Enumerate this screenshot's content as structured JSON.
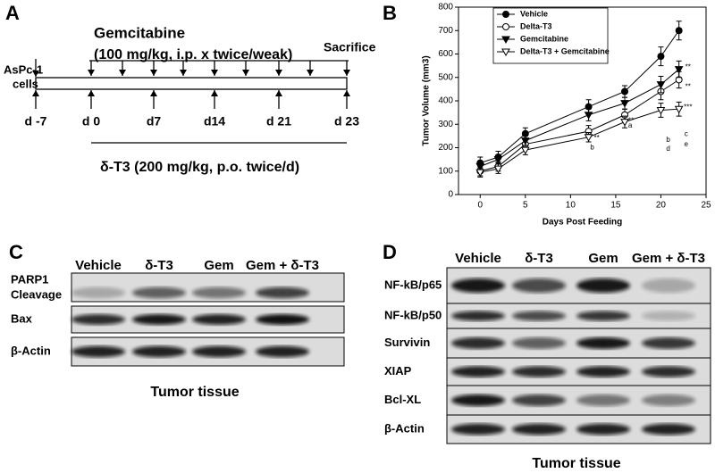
{
  "panel_a": {
    "label": "A",
    "drug": "Gemcitabine",
    "drug_dose": "(100 mg/kg, i.p. x twice/weak)",
    "cells": [
      "AsPc-1",
      "cells"
    ],
    "end": "Sacrifice",
    "days": [
      "d -7",
      "d 0",
      "d7",
      "d14",
      "d 21",
      "d 23"
    ],
    "treatment": "δ-T3 (200 mg/kg, p.o. twice/d)"
  },
  "panel_b": {
    "label": "B"
  },
  "chart_data": {
    "type": "line",
    "x_label": "Days Post Feeding",
    "y_label": "Tumor Volume (mm3)",
    "x": [
      0,
      2,
      5,
      12,
      16,
      20,
      22
    ],
    "series": [
      {
        "name": "Vehicle",
        "color": "#000000",
        "marker": "circle",
        "filled": true,
        "values": [
          135,
          160,
          260,
          375,
          440,
          590,
          700
        ],
        "errors": [
          25,
          25,
          25,
          30,
          25,
          40,
          40
        ]
      },
      {
        "name": "Delta-T3",
        "color": "#000000",
        "marker": "circle",
        "filled": false,
        "values": [
          100,
          120,
          215,
          270,
          340,
          440,
          490
        ],
        "errors": [
          20,
          20,
          20,
          25,
          25,
          35,
          35
        ]
      },
      {
        "name": "Gemcitabine",
        "color": "#000000",
        "marker": "triangle-down",
        "filled": true,
        "values": [
          120,
          150,
          230,
          340,
          390,
          470,
          535
        ],
        "errors": [
          20,
          20,
          20,
          25,
          25,
          35,
          35
        ]
      },
      {
        "name": "Delta-T3 + Gemcitabine",
        "color": "#000000",
        "marker": "triangle-down",
        "filled": false,
        "values": [
          95,
          110,
          190,
          245,
          310,
          360,
          365
        ],
        "errors": [
          20,
          20,
          20,
          20,
          25,
          30,
          30
        ]
      }
    ],
    "annotations": [
      {
        "text": "**",
        "x": 12.9,
        "y": 240
      },
      {
        "text": "b",
        "x": 12.4,
        "y": 201
      },
      {
        "text": "**",
        "x": 16.7,
        "y": 315
      },
      {
        "text": "a",
        "x": 16.6,
        "y": 293
      },
      {
        "text": "b",
        "x": 20.8,
        "y": 232
      },
      {
        "text": "d",
        "x": 20.8,
        "y": 194
      },
      {
        "text": "***",
        "x": 23,
        "y": 372
      },
      {
        "text": "c",
        "x": 22.8,
        "y": 258
      },
      {
        "text": "e",
        "x": 22.8,
        "y": 213
      },
      {
        "text": "**",
        "x": 23,
        "y": 460
      },
      {
        "text": "**",
        "x": 23,
        "y": 544
      }
    ],
    "xlim": [
      -2.4,
      25
    ],
    "xticks": [
      0,
      5,
      10,
      15,
      20,
      25
    ],
    "ylim": [
      0,
      800
    ],
    "yticks": [
      0,
      100,
      200,
      300,
      400,
      500,
      600,
      700,
      800
    ],
    "legend": "upper left"
  },
  "panel_c": {
    "label": "C",
    "lanes": [
      "Vehicle",
      "δ-T3",
      "Gem",
      "Gem + δ-T3"
    ],
    "rows": [
      [
        "PARP1",
        "Cleavage"
      ],
      "Bax",
      "β-Actin"
    ],
    "caption": "Tumor tissue"
  },
  "panel_d": {
    "label": "D",
    "lanes": [
      "Vehicle",
      "δ-T3",
      "Gem",
      "Gem + δ-T3"
    ],
    "rows": [
      "NF-kB/p65",
      "NF-kB/p50",
      "Survivin",
      "XIAP",
      "Bcl-XL",
      "β-Actin"
    ],
    "caption": "Tumor tissue"
  }
}
